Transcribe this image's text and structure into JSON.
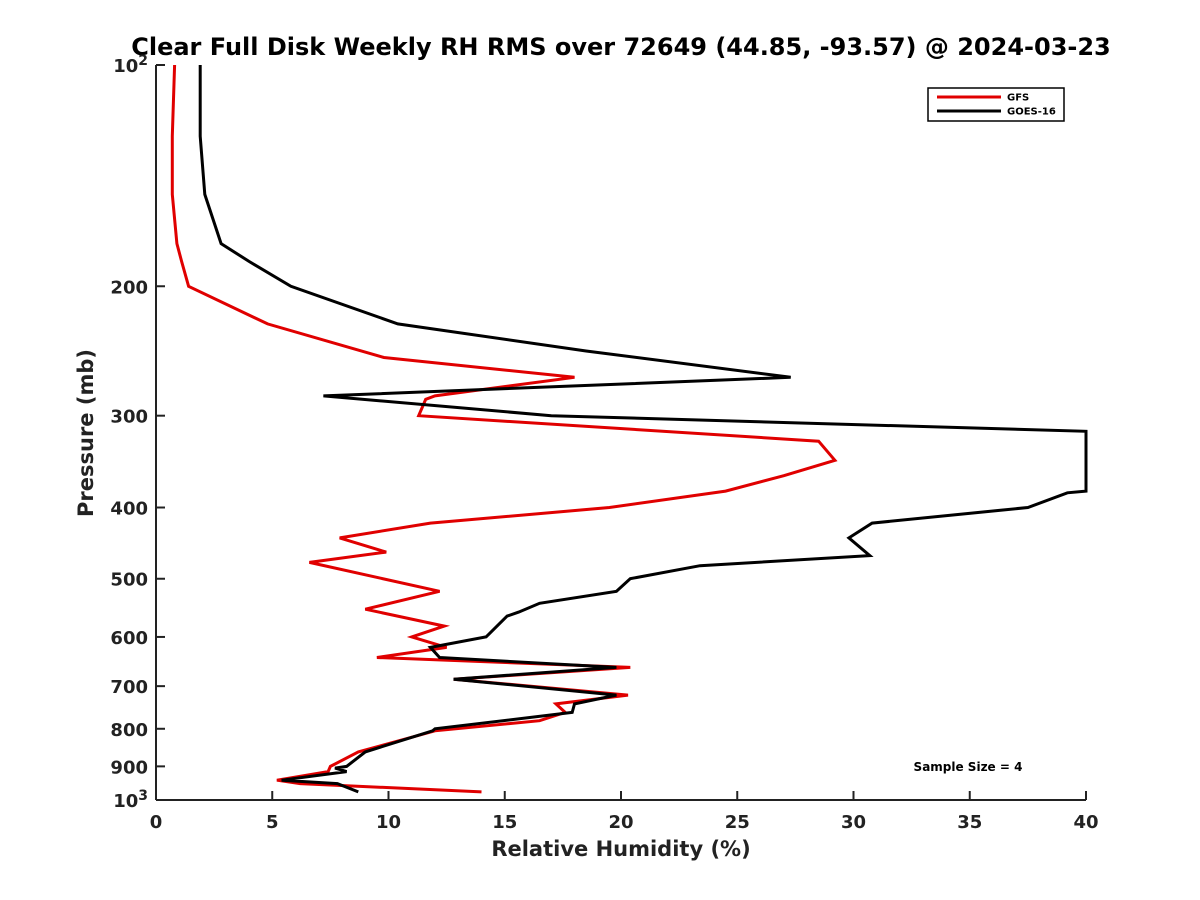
{
  "chart_data": {
    "type": "line",
    "title": "Clear Full Disk Weekly RH RMS over 72649 (44.85, -93.57) @ 2024-03-23",
    "xlabel": "Relative Humidity (%)",
    "ylabel": "Pressure (mb)",
    "xlim": [
      0,
      40
    ],
    "ylim": [
      100,
      1000
    ],
    "y_scale": "log",
    "y_reversed": true,
    "x_ticks": [
      "0",
      "5",
      "10",
      "15",
      "20",
      "25",
      "30",
      "35",
      "40"
    ],
    "y_ticks": [
      {
        "value": 100,
        "label": "10",
        "sup": "2"
      },
      {
        "value": 200,
        "label": "200",
        "sup": ""
      },
      {
        "value": 300,
        "label": "300",
        "sup": ""
      },
      {
        "value": 400,
        "label": "400",
        "sup": ""
      },
      {
        "value": 500,
        "label": "500",
        "sup": ""
      },
      {
        "value": 600,
        "label": "600",
        "sup": ""
      },
      {
        "value": 700,
        "label": "700",
        "sup": ""
      },
      {
        "value": 800,
        "label": "800",
        "sup": ""
      },
      {
        "value": 900,
        "label": "900",
        "sup": ""
      },
      {
        "value": 1000,
        "label": "10",
        "sup": "3"
      }
    ],
    "legend_position": "top-right",
    "grid": false,
    "annotation": "Sample Size = 4",
    "series": [
      {
        "name": "GFS",
        "color": "#e00000",
        "points": [
          [
            0.8,
            100
          ],
          [
            0.7,
            125
          ],
          [
            0.7,
            150
          ],
          [
            0.9,
            175
          ],
          [
            1.1,
            185
          ],
          [
            1.4,
            200
          ],
          [
            4.8,
            225
          ],
          [
            9.8,
            250
          ],
          [
            18.0,
            266
          ],
          [
            12.0,
            282
          ],
          [
            11.6,
            285
          ],
          [
            11.3,
            300
          ],
          [
            28.5,
            325
          ],
          [
            29.2,
            345
          ],
          [
            27.0,
            362
          ],
          [
            24.5,
            380
          ],
          [
            19.5,
            400
          ],
          [
            11.8,
            420
          ],
          [
            7.9,
            440
          ],
          [
            9.9,
            460
          ],
          [
            6.6,
            475
          ],
          [
            12.2,
            520
          ],
          [
            9.0,
            550
          ],
          [
            12.4,
            580
          ],
          [
            11.0,
            600
          ],
          [
            12.5,
            620
          ],
          [
            9.5,
            640
          ],
          [
            20.4,
            660
          ],
          [
            12.8,
            685
          ],
          [
            20.3,
            720
          ],
          [
            17.2,
            740
          ],
          [
            17.6,
            760
          ],
          [
            16.5,
            780
          ],
          [
            12.0,
            805
          ],
          [
            8.7,
            860
          ],
          [
            7.5,
            900
          ],
          [
            7.4,
            915
          ],
          [
            5.2,
            940
          ],
          [
            6.2,
            950
          ],
          [
            14.0,
            975
          ]
        ]
      },
      {
        "name": "GOES-16",
        "color": "#000000",
        "points": [
          [
            1.9,
            100
          ],
          [
            1.9,
            125
          ],
          [
            2.1,
            150
          ],
          [
            2.8,
            175
          ],
          [
            4.0,
            185
          ],
          [
            5.8,
            200
          ],
          [
            10.4,
            225
          ],
          [
            18.5,
            245
          ],
          [
            27.3,
            266
          ],
          [
            7.2,
            282
          ],
          [
            17.0,
            300
          ],
          [
            40.0,
            315
          ],
          [
            40.0,
            380
          ],
          [
            39.2,
            382
          ],
          [
            37.5,
            400
          ],
          [
            30.8,
            420
          ],
          [
            29.8,
            440
          ],
          [
            30.7,
            465
          ],
          [
            23.4,
            480
          ],
          [
            20.4,
            500
          ],
          [
            19.8,
            520
          ],
          [
            16.5,
            540
          ],
          [
            15.6,
            555
          ],
          [
            15.1,
            562
          ],
          [
            14.2,
            600
          ],
          [
            11.8,
            620
          ],
          [
            12.2,
            640
          ],
          [
            19.8,
            660
          ],
          [
            12.8,
            685
          ],
          [
            19.8,
            720
          ],
          [
            18.0,
            740
          ],
          [
            17.9,
            760
          ],
          [
            12.0,
            800
          ],
          [
            11.9,
            805
          ],
          [
            9.0,
            860
          ],
          [
            8.2,
            900
          ],
          [
            7.7,
            905
          ],
          [
            8.2,
            915
          ],
          [
            5.4,
            940
          ],
          [
            7.8,
            950
          ],
          [
            8.7,
            975
          ]
        ]
      }
    ]
  }
}
